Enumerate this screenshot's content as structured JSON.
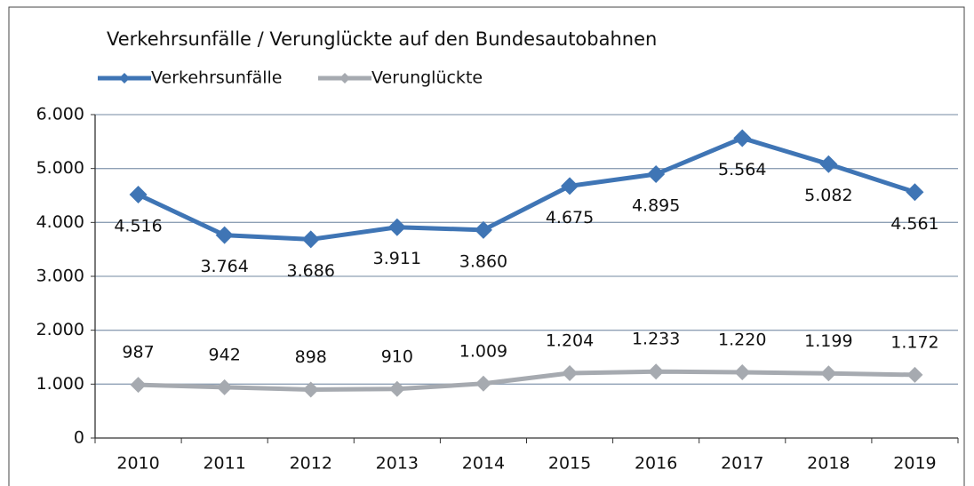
{
  "chart_data": {
    "type": "line",
    "title": "Verkehrsunfälle / Verunglückte  auf den Bundesautobahnen",
    "categories": [
      "2010",
      "2011",
      "2012",
      "2013",
      "2014",
      "2015",
      "2016",
      "2017",
      "2018",
      "2019"
    ],
    "series": [
      {
        "name": "Verkehrsunfälle",
        "color": "#3f75b5",
        "values": [
          4516,
          3764,
          3686,
          3911,
          3860,
          4675,
          4895,
          5564,
          5082,
          4561
        ],
        "value_labels": [
          "4.516",
          "3.764",
          "3.686",
          "3.911",
          "3.860",
          "4.675",
          "4.895",
          "5.564",
          "5.082",
          "4.561"
        ]
      },
      {
        "name": "Verunglückte",
        "color": "#a6aab0",
        "values": [
          987,
          942,
          898,
          910,
          1009,
          1204,
          1233,
          1220,
          1199,
          1172
        ],
        "value_labels": [
          "987",
          "942",
          "898",
          "910",
          "1.009",
          "1.204",
          "1.233",
          "1.220",
          "1.199",
          "1.172"
        ]
      }
    ],
    "ylim": [
      0,
      6000
    ],
    "yticks": [
      0,
      {
        "value": 1000,
        "label": "1.000"
      },
      {
        "value": 2000,
        "label": "2.000"
      },
      {
        "value": 3000,
        "label": "3.000"
      },
      {
        "value": 4000,
        "label": "4.000"
      },
      {
        "value": 5000,
        "label": "5.000"
      },
      {
        "value": 6000,
        "label": "6.000"
      }
    ],
    "grid": true,
    "legend": "top-left"
  }
}
